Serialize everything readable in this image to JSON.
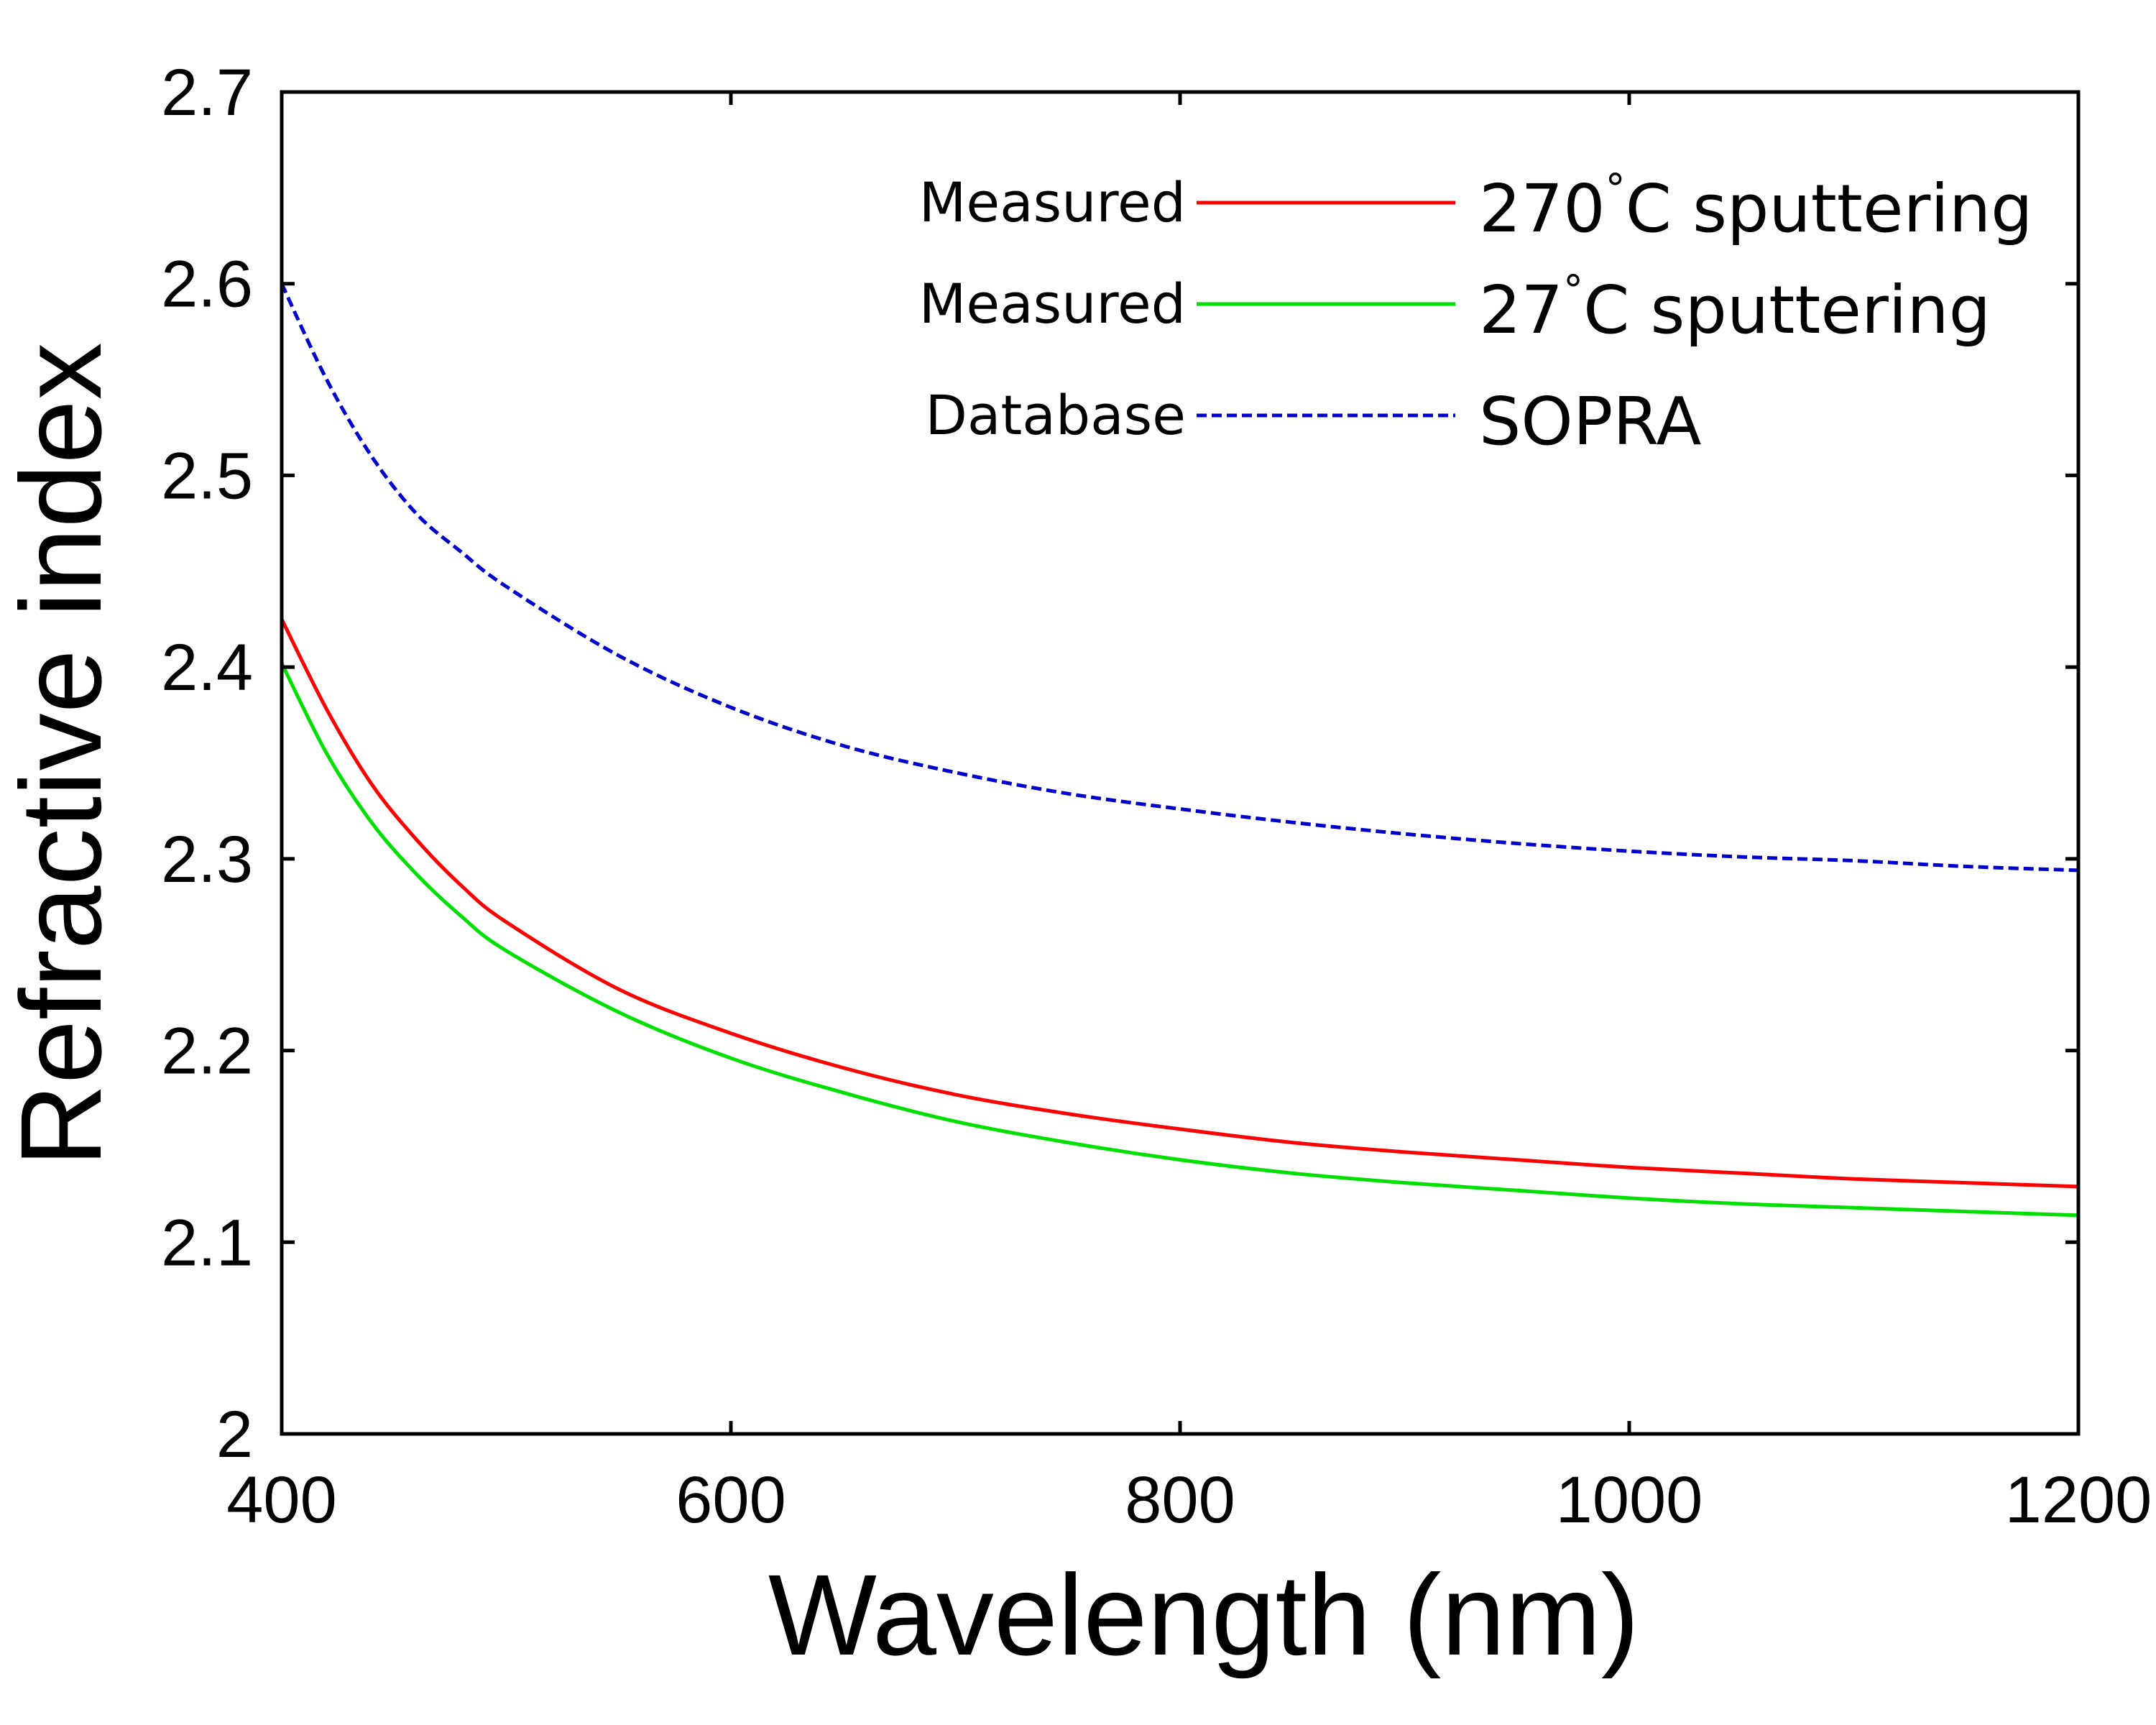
{
  "chart_data": {
    "type": "line",
    "title": "",
    "xlabel": "Wavelength (nm)",
    "ylabel": "Refractive index",
    "xlim": [
      400,
      1200
    ],
    "ylim": [
      2.0,
      2.7
    ],
    "xticks": [
      "400",
      "600",
      "800",
      "1000",
      "1200"
    ],
    "yticks": [
      "2",
      "2.1",
      "2.2",
      "2.3",
      "2.4",
      "2.5",
      "2.6",
      "2.7"
    ],
    "grid": false,
    "legend_position": "top-right",
    "series": [
      {
        "name": "Measured 270°C sputtering",
        "legend_prefix": "Measured",
        "legend_temp": "270",
        "legend_suffix": "C sputtering",
        "color": "#ff0000",
        "style": "solid",
        "x": [
          400,
          420,
          440,
          460,
          480,
          500,
          550,
          600,
          650,
          700,
          750,
          800,
          850,
          900,
          950,
          1000,
          1050,
          1100,
          1150,
          1200
        ],
        "values": [
          2.425,
          2.378,
          2.339,
          2.31,
          2.286,
          2.267,
          2.232,
          2.209,
          2.191,
          2.177,
          2.167,
          2.159,
          2.152,
          2.147,
          2.143,
          2.139,
          2.136,
          2.133,
          2.131,
          2.129
        ]
      },
      {
        "name": "Measured 27°C sputtering",
        "legend_prefix": "Measured",
        "legend_temp": "27",
        "legend_suffix": "C sputtering",
        "color": "#00e000",
        "style": "solid",
        "x": [
          400,
          420,
          440,
          460,
          480,
          500,
          550,
          600,
          650,
          700,
          750,
          800,
          850,
          900,
          950,
          1000,
          1050,
          1100,
          1150,
          1200
        ],
        "values": [
          2.402,
          2.355,
          2.319,
          2.292,
          2.27,
          2.252,
          2.22,
          2.196,
          2.178,
          2.163,
          2.152,
          2.143,
          2.136,
          2.131,
          2.127,
          2.123,
          2.12,
          2.118,
          2.116,
          2.114
        ]
      },
      {
        "name": "Database SOPRA",
        "legend_prefix": "Database",
        "legend_temp": "",
        "legend_suffix": "SOPRA",
        "color": "#0000cc",
        "style": "dashed",
        "x": [
          400,
          420,
          440,
          460,
          480,
          500,
          550,
          600,
          650,
          700,
          750,
          800,
          850,
          900,
          950,
          1000,
          1050,
          1100,
          1150,
          1200
        ],
        "values": [
          2.6,
          2.55,
          2.51,
          2.48,
          2.46,
          2.442,
          2.406,
          2.379,
          2.359,
          2.345,
          2.334,
          2.326,
          2.319,
          2.313,
          2.308,
          2.304,
          2.301,
          2.299,
          2.296,
          2.294
        ]
      }
    ]
  }
}
